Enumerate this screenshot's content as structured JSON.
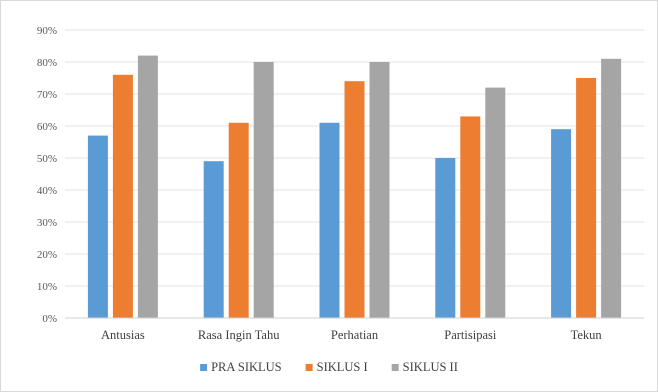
{
  "chart_data": {
    "type": "bar",
    "title": "",
    "xlabel": "",
    "ylabel": "",
    "ylim": [
      0,
      90
    ],
    "y_ticks": [
      "0%",
      "10%",
      "20%",
      "30%",
      "40%",
      "50%",
      "60%",
      "70%",
      "80%",
      "90%"
    ],
    "categories": [
      "Antusias",
      "Rasa Ingin Tahu",
      "Perhatian",
      "Partisipasi",
      "Tekun"
    ],
    "series": [
      {
        "name": "PRA SIKLUS",
        "color": "#5b9bd5",
        "values": [
          57,
          49,
          61,
          50,
          59
        ]
      },
      {
        "name": "SIKLUS I",
        "color": "#ed7d31",
        "values": [
          76,
          61,
          74,
          63,
          75
        ]
      },
      {
        "name": "SIKLUS II",
        "color": "#a5a5a5",
        "values": [
          82,
          80,
          80,
          72,
          81
        ]
      }
    ],
    "grid": true,
    "legend": "bottom"
  }
}
